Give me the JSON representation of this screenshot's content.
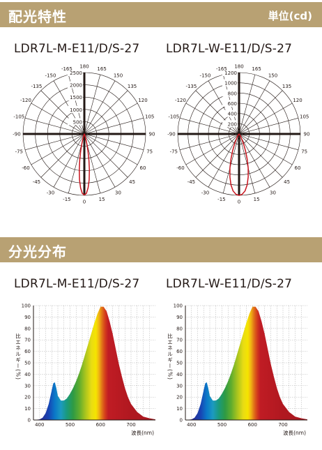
{
  "sections": {
    "light_distribution": {
      "title": "配光特性",
      "unit": "単位(cd)"
    },
    "spectrum": {
      "title": "分光分布"
    }
  },
  "colors": {
    "band": "#b8a173",
    "curve": "#c8141e",
    "axis": "#231815"
  },
  "chart_data": [
    {
      "type": "polar",
      "title": "LDR7L-M-E11/D/S-27",
      "radial_ticks": [
        "500",
        "1000",
        "1500",
        "2000",
        "2500"
      ],
      "radial_max": 2500,
      "angle_ticks_left": [
        "-165",
        "-150",
        "-135",
        "-120",
        "-105",
        "-90",
        "-75",
        "-60",
        "-45",
        "-30",
        "-15"
      ],
      "angle_ticks_right": [
        "165",
        "150",
        "135",
        "120",
        "105",
        "90",
        "75",
        "60",
        "45",
        "30",
        "15"
      ],
      "angle_top": "180",
      "angle_bottom": "0",
      "curve": {
        "angles": [
          0,
          2,
          4,
          6,
          8,
          10,
          12,
          14,
          16,
          18,
          20,
          25,
          30,
          35
        ],
        "values": [
          2480,
          2420,
          2200,
          1880,
          1480,
          1080,
          720,
          440,
          250,
          130,
          70,
          30,
          15,
          5
        ]
      }
    },
    {
      "type": "polar",
      "title": "LDR7L-W-E11/D/S-27",
      "radial_ticks": [
        "200",
        "400",
        "600",
        "800",
        "1000",
        "1200"
      ],
      "radial_max": 1200,
      "angle_ticks_left": [
        "-165",
        "-150",
        "-135",
        "-120",
        "-105",
        "-90",
        "-75",
        "-60",
        "-45",
        "-30",
        "-15"
      ],
      "angle_ticks_right": [
        "165",
        "150",
        "135",
        "120",
        "105",
        "90",
        "75",
        "60",
        "45",
        "30",
        "15"
      ],
      "angle_top": "180",
      "angle_bottom": "0",
      "curve": {
        "angles": [
          0,
          3,
          6,
          9,
          12,
          15,
          18,
          21,
          24,
          27,
          30,
          35,
          40,
          45
        ],
        "values": [
          1200,
          1180,
          1120,
          1010,
          860,
          690,
          510,
          350,
          220,
          130,
          75,
          35,
          15,
          5
        ]
      }
    },
    {
      "type": "area",
      "title": "LDR7L-M-E11/D/S-27",
      "xlabel": "波長(nm)",
      "ylabel": "比エネルギー(%)",
      "xlim": [
        380,
        780
      ],
      "ylim": [
        0,
        100
      ],
      "xticks": [
        "400",
        "500",
        "600",
        "700"
      ],
      "yticks": [
        "0",
        "10",
        "20",
        "30",
        "40",
        "50",
        "60",
        "70",
        "80",
        "90",
        "100"
      ],
      "x": [
        380,
        400,
        410,
        420,
        430,
        440,
        445,
        450,
        455,
        460,
        470,
        480,
        490,
        500,
        510,
        520,
        530,
        540,
        550,
        560,
        570,
        580,
        590,
        600,
        610,
        620,
        630,
        640,
        650,
        660,
        670,
        680,
        690,
        700,
        720,
        740,
        760,
        780
      ],
      "y": [
        0,
        0.5,
        2,
        6,
        14,
        26,
        32,
        33,
        28,
        21,
        17,
        17,
        19,
        23,
        28,
        34,
        41,
        49,
        58,
        67,
        76,
        85,
        93,
        99,
        99,
        95,
        86,
        75,
        62,
        49,
        38,
        28,
        20,
        14,
        7,
        3,
        1.5,
        0.5
      ]
    },
    {
      "type": "area",
      "title": "LDR7L-W-E11/D/S-27",
      "xlabel": "波長(nm)",
      "ylabel": "比エネルギー(%)",
      "xlim": [
        380,
        780
      ],
      "ylim": [
        0,
        100
      ],
      "xticks": [
        "400",
        "500",
        "600",
        "700"
      ],
      "yticks": [
        "0",
        "10",
        "20",
        "30",
        "40",
        "50",
        "60",
        "70",
        "80",
        "90",
        "100"
      ],
      "x": [
        380,
        400,
        410,
        420,
        430,
        440,
        445,
        450,
        455,
        460,
        470,
        480,
        490,
        500,
        510,
        520,
        530,
        540,
        550,
        560,
        570,
        580,
        590,
        600,
        610,
        620,
        630,
        640,
        650,
        660,
        670,
        680,
        690,
        700,
        720,
        740,
        760,
        780
      ],
      "y": [
        0,
        0.5,
        2,
        6,
        14,
        26,
        32,
        33,
        28,
        21,
        17,
        17,
        19,
        23,
        28,
        34,
        41,
        49,
        58,
        67,
        76,
        85,
        93,
        99,
        99,
        95,
        86,
        75,
        62,
        49,
        38,
        28,
        20,
        14,
        7,
        3,
        1.5,
        0.5
      ]
    }
  ]
}
